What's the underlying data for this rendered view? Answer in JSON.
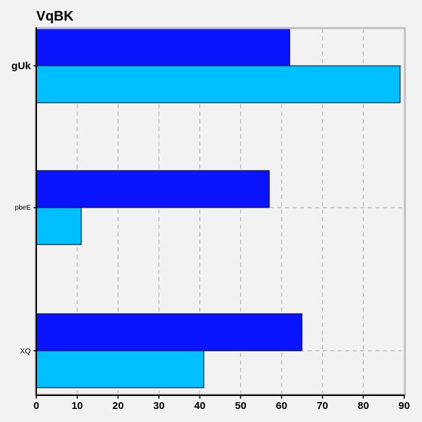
{
  "chart_data": {
    "type": "bar",
    "orientation": "horizontal",
    "title": "VqBK",
    "xlabel": "",
    "ylabel": "",
    "categories": [
      "gUk",
      "pbeE",
      "XQ"
    ],
    "series": [
      {
        "values": [
          62,
          57,
          65
        ],
        "color": "#0a14ff"
      },
      {
        "values": [
          89,
          11,
          41
        ],
        "color": "#00bfff"
      }
    ],
    "xlim": [
      0,
      90
    ],
    "xticks": [
      0,
      10,
      20,
      30,
      40,
      50,
      60,
      70,
      80,
      90
    ],
    "grid": true,
    "legend": "none"
  },
  "colors": {
    "background": "#f2f2f2",
    "frame": "#c0c0c0",
    "grid": "#a8a8a8",
    "bar_edge": "#000000"
  }
}
